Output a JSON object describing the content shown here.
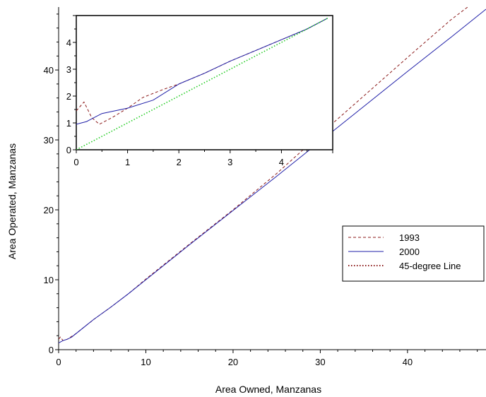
{
  "chart_data": [
    {
      "type": "line",
      "title": "",
      "xlabel": "Area Owned, Manzanas",
      "ylabel": "Area Operated, Manzanas",
      "xlim": [
        0,
        49
      ],
      "ylim": [
        0,
        49
      ],
      "xticks": [
        "0",
        "10",
        "20",
        "30",
        "40"
      ],
      "yticks": [
        "0",
        "10",
        "20",
        "30",
        "40"
      ],
      "grid": false,
      "legend_position": "right",
      "series": [
        {
          "name": "1993",
          "color": "#8b1a1a",
          "style": "dashed",
          "x": [
            0,
            0.2,
            0.5,
            1,
            1.5,
            2,
            3,
            4,
            6,
            8,
            10,
            15,
            20,
            25,
            30,
            35,
            40,
            45,
            49
          ],
          "y": [
            1.5,
            1.8,
            1.3,
            1.5,
            1.9,
            2.3,
            3.3,
            4.3,
            6.1,
            8.0,
            10.1,
            15.1,
            20.0,
            25.2,
            30.8,
            36.3,
            41.8,
            47.2,
            51
          ]
        },
        {
          "name": "2000",
          "color": "#1f1fa8",
          "style": "solid",
          "x": [
            0,
            0.5,
            1,
            1.5,
            2,
            3,
            4,
            6,
            8,
            10,
            15,
            20,
            25,
            30,
            35,
            40,
            45,
            49
          ],
          "y": [
            0.95,
            1.3,
            1.5,
            1.8,
            2.3,
            3.3,
            4.3,
            6.1,
            8.0,
            10.0,
            15.0,
            19.9,
            24.8,
            29.8,
            34.8,
            39.8,
            44.7,
            48.7
          ]
        },
        {
          "name": "45-degree Line",
          "color": "#8b1a1a",
          "style": "dotted",
          "x": [],
          "y": []
        }
      ]
    },
    {
      "type": "line",
      "title": "",
      "xlabel": "",
      "ylabel": "",
      "xlim": [
        0,
        5
      ],
      "ylim": [
        0,
        5
      ],
      "xticks": [
        "0",
        "1",
        "2",
        "3",
        "4"
      ],
      "yticks": [
        "0",
        "1",
        "2",
        "3",
        "4"
      ],
      "grid": false,
      "series": [
        {
          "color": "#8b1a1a",
          "style": "dashed",
          "x": [
            0,
            0.15,
            0.3,
            0.45,
            0.7,
            1.0,
            1.3,
            1.7,
            2.0,
            2.5,
            3.0,
            3.5,
            4.0,
            4.5,
            4.9
          ],
          "y": [
            1.45,
            1.78,
            1.2,
            0.95,
            1.2,
            1.55,
            1.95,
            2.25,
            2.45,
            2.85,
            3.3,
            3.7,
            4.1,
            4.5,
            4.9
          ]
        },
        {
          "color": "#1f1fa8",
          "style": "solid",
          "x": [
            0,
            0.2,
            0.5,
            1.0,
            1.5,
            2.0,
            2.5,
            3.0,
            3.5,
            4.0,
            4.5,
            4.9
          ],
          "y": [
            0.95,
            1.05,
            1.35,
            1.55,
            1.85,
            2.45,
            2.85,
            3.3,
            3.7,
            4.1,
            4.5,
            4.9
          ]
        },
        {
          "color": "#22cc22",
          "style": "dotted",
          "x": [
            0,
            4.9
          ],
          "y": [
            0,
            4.9
          ]
        }
      ]
    }
  ]
}
